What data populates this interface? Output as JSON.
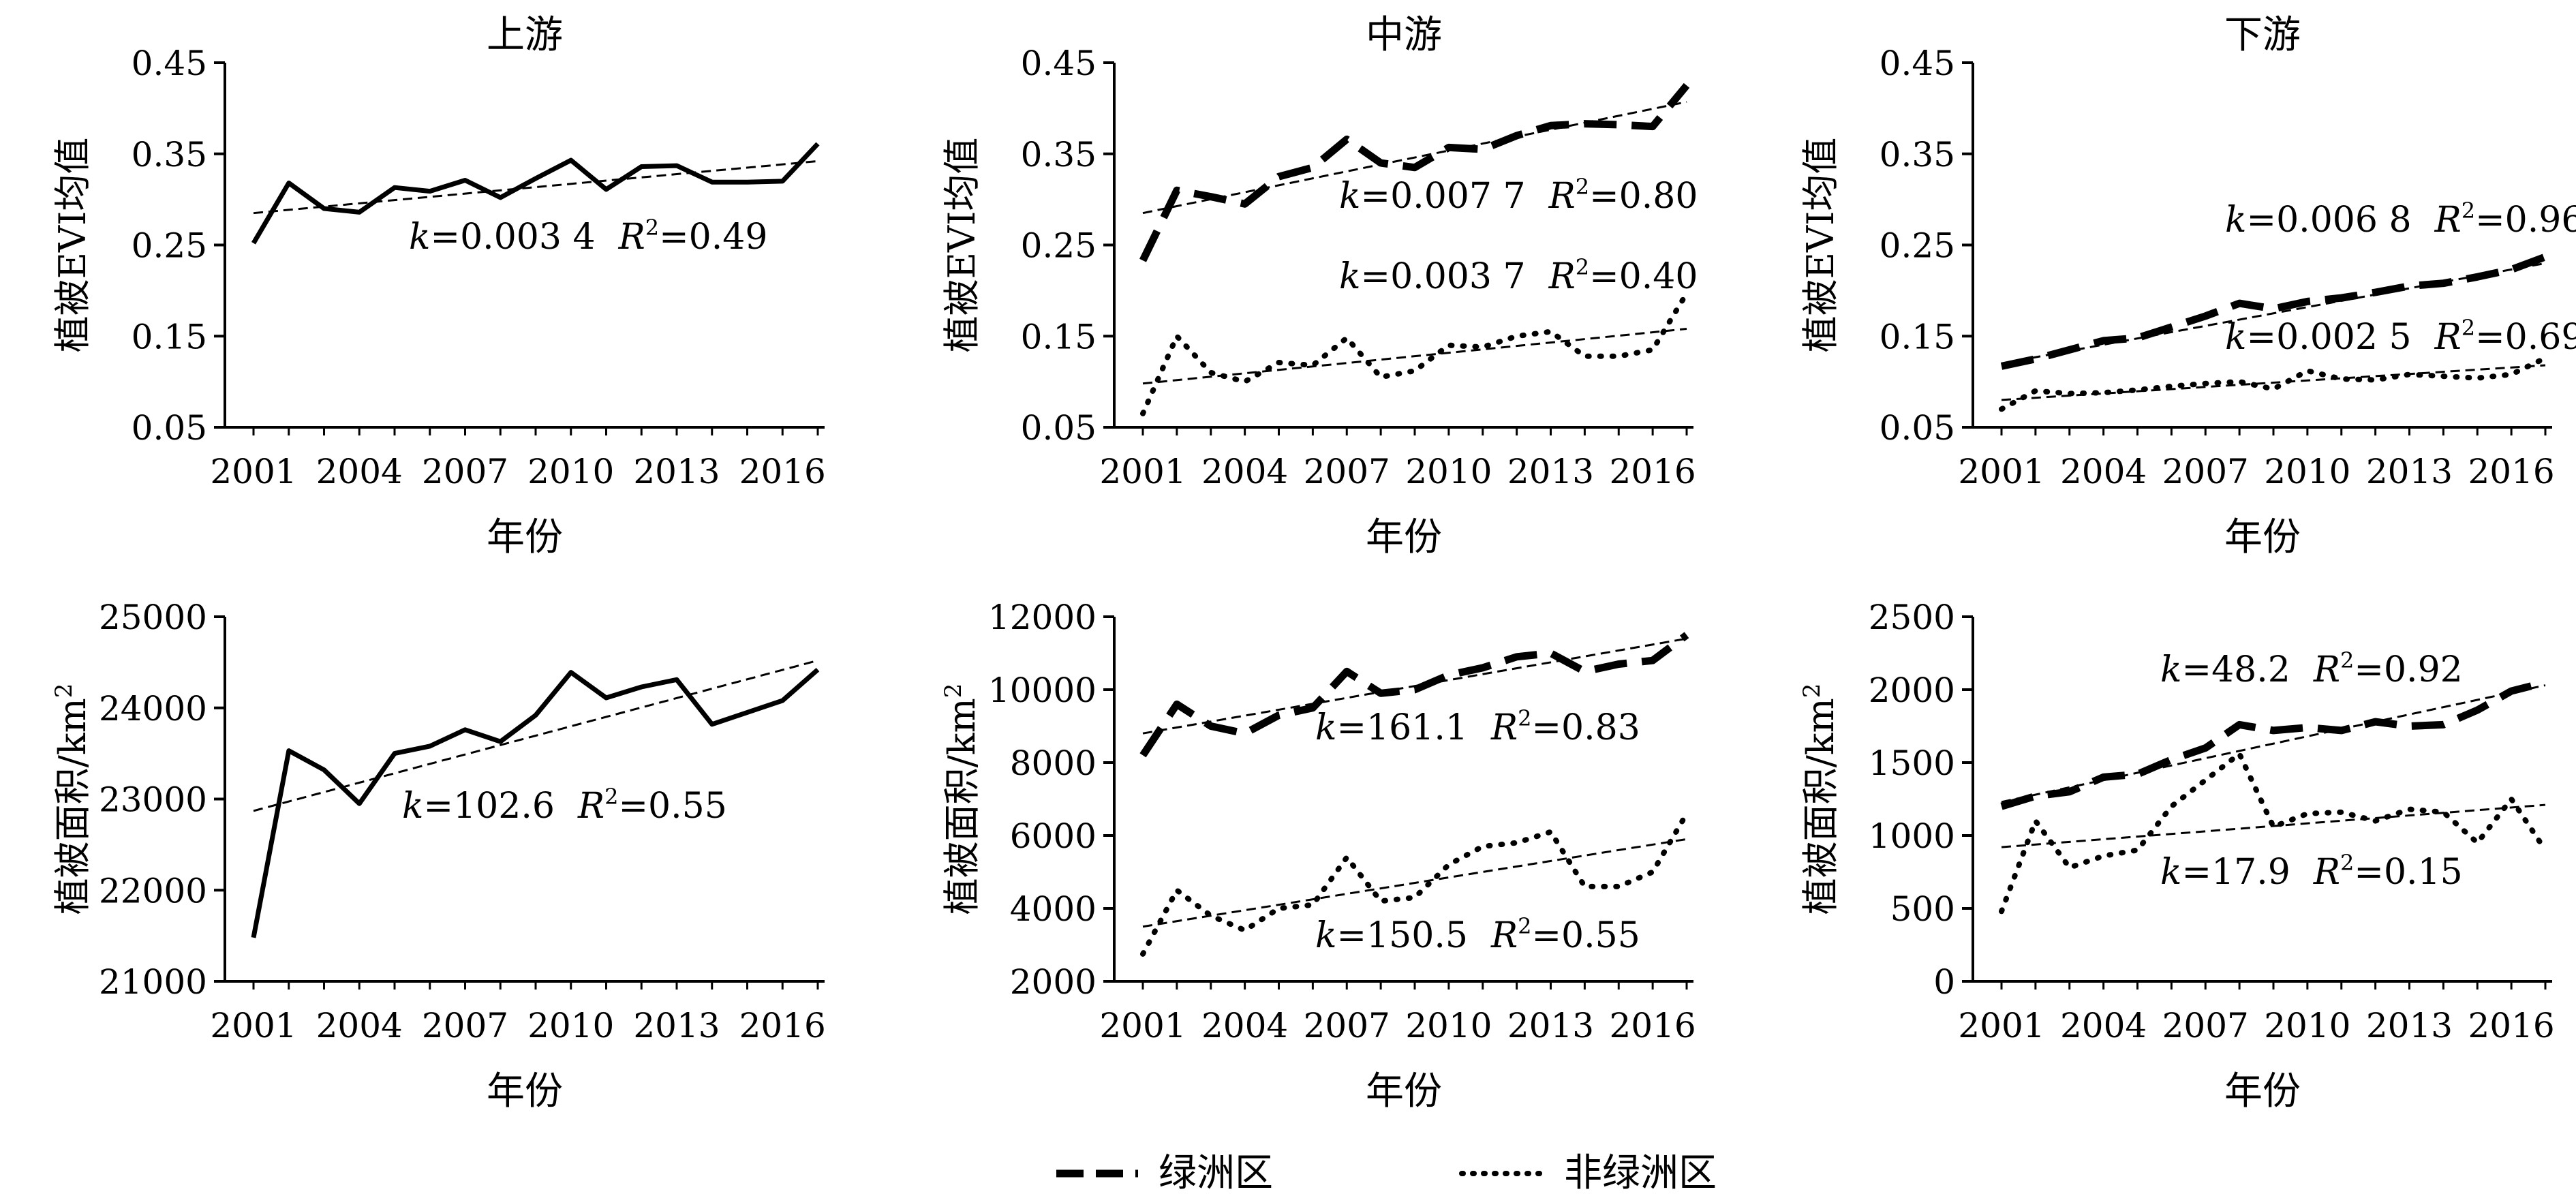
{
  "colors": {
    "ink": "#000000",
    "background": "#ffffff"
  },
  "legend": {
    "oasis_label": "绿洲区",
    "non_oasis_label": "非绿洲区"
  },
  "chart_data": [
    {
      "type": "line",
      "title": "上游",
      "xlabel": "年份",
      "ylabel": "植被EVI均值",
      "ylim": [
        0.05,
        0.45
      ],
      "yticks": [
        "0.45",
        "0.35",
        "0.25",
        "0.15",
        "0.05"
      ],
      "xticks": [
        "2001",
        "2004",
        "2007",
        "2010",
        "2013",
        "2016"
      ],
      "x": [
        2001,
        2002,
        2003,
        2004,
        2005,
        2006,
        2007,
        2008,
        2009,
        2010,
        2011,
        2012,
        2013,
        2014,
        2015,
        2016,
        2017
      ],
      "series": [
        {
          "name": "绿洲区",
          "style": "solid",
          "values": [
            0.252,
            0.318,
            0.29,
            0.286,
            0.313,
            0.309,
            0.321,
            0.302,
            0.323,
            0.343,
            0.311,
            0.336,
            0.337,
            0.319,
            0.319,
            0.32,
            0.361
          ],
          "trend": [
            0.285,
            0.342
          ],
          "annotation": {
            "k": "=0.003 4",
            "r2": "=0.49"
          }
        }
      ]
    },
    {
      "type": "line",
      "title": "中游",
      "xlabel": "年份",
      "ylabel": "植被EVI均值",
      "ylim": [
        0.05,
        0.45
      ],
      "yticks": [
        "0.45",
        "0.35",
        "0.25",
        "0.15",
        "0.05"
      ],
      "xticks": [
        "2001",
        "2004",
        "2007",
        "2010",
        "2013",
        "2016"
      ],
      "x": [
        2001,
        2002,
        2003,
        2004,
        2005,
        2006,
        2007,
        2008,
        2009,
        2010,
        2011,
        2012,
        2013,
        2014,
        2015,
        2016,
        2017
      ],
      "series": [
        {
          "name": "绿洲区",
          "style": "dashed",
          "values": [
            0.233,
            0.31,
            0.303,
            0.295,
            0.325,
            0.335,
            0.366,
            0.34,
            0.335,
            0.357,
            0.355,
            0.37,
            0.381,
            0.383,
            0.382,
            0.38,
            0.425
          ],
          "trend": [
            0.285,
            0.407
          ],
          "annotation": {
            "k": "=0.007 7",
            "r2": "=0.80"
          }
        },
        {
          "name": "非绿洲区",
          "style": "dotted",
          "values": [
            0.065,
            0.15,
            0.11,
            0.1,
            0.121,
            0.118,
            0.148,
            0.105,
            0.112,
            0.14,
            0.138,
            0.15,
            0.155,
            0.128,
            0.128,
            0.135,
            0.197
          ],
          "trend": [
            0.098,
            0.158
          ],
          "annotation": {
            "k": "=0.003 7",
            "r2": "=0.40"
          }
        }
      ]
    },
    {
      "type": "line",
      "title": "下游",
      "xlabel": "年份",
      "ylabel": "植被EVI均值",
      "ylim": [
        0.05,
        0.45
      ],
      "yticks": [
        "0.45",
        "0.35",
        "0.25",
        "0.15",
        "0.05"
      ],
      "xticks": [
        "2001",
        "2004",
        "2007",
        "2010",
        "2013",
        "2016"
      ],
      "x": [
        2001,
        2002,
        2003,
        2004,
        2005,
        2006,
        2007,
        2008,
        2009,
        2010,
        2011,
        2012,
        2013,
        2014,
        2015,
        2016,
        2017
      ],
      "series": [
        {
          "name": "绿洲区",
          "style": "dashed",
          "values": [
            0.117,
            0.125,
            0.135,
            0.145,
            0.148,
            0.16,
            0.172,
            0.186,
            0.18,
            0.188,
            0.192,
            0.198,
            0.205,
            0.208,
            0.215,
            0.223,
            0.237
          ],
          "trend": [
            0.12,
            0.23
          ],
          "annotation": {
            "k": "=0.006 8",
            "r2": "=0.96"
          }
        },
        {
          "name": "非绿洲区",
          "style": "dotted",
          "values": [
            0.07,
            0.09,
            0.087,
            0.088,
            0.091,
            0.095,
            0.098,
            0.1,
            0.092,
            0.112,
            0.103,
            0.102,
            0.108,
            0.106,
            0.104,
            0.108,
            0.126
          ],
          "trend": [
            0.08,
            0.118
          ],
          "annotation": {
            "k": "=0.002 5",
            "r2": "=0.69"
          }
        }
      ]
    },
    {
      "type": "line",
      "title": "",
      "xlabel": "年份",
      "ylabel": "植被面积/km",
      "ylabel_sup": "2",
      "ylim": [
        21000,
        25000
      ],
      "yticks": [
        "25000",
        "24000",
        "23000",
        "22000",
        "21000"
      ],
      "xticks": [
        "2001",
        "2004",
        "2007",
        "2010",
        "2013",
        "2016"
      ],
      "x": [
        2001,
        2002,
        2003,
        2004,
        2005,
        2006,
        2007,
        2008,
        2009,
        2010,
        2011,
        2012,
        2013,
        2014,
        2015,
        2016,
        2017
      ],
      "series": [
        {
          "name": "绿洲区",
          "style": "solid",
          "values": [
            21480,
            23530,
            23320,
            22950,
            23500,
            23580,
            23760,
            23630,
            23920,
            24390,
            24110,
            24230,
            24310,
            23820,
            23950,
            24080,
            24420
          ],
          "trend": [
            22870,
            24520
          ],
          "annotation": {
            "k": "=102.6",
            "r2": "=0.55"
          }
        }
      ]
    },
    {
      "type": "line",
      "title": "",
      "xlabel": "年份",
      "ylabel": "植被面积/km",
      "ylabel_sup": "2",
      "ylim": [
        2000,
        12000
      ],
      "yticks": [
        "12000",
        "10000",
        "8000",
        "6000",
        "4000",
        "2000"
      ],
      "xticks": [
        "2001",
        "2004",
        "2007",
        "2010",
        "2013",
        "2016"
      ],
      "x": [
        2001,
        2002,
        2003,
        2004,
        2005,
        2006,
        2007,
        2008,
        2009,
        2010,
        2011,
        2012,
        2013,
        2014,
        2015,
        2016,
        2017
      ],
      "series": [
        {
          "name": "绿洲区",
          "style": "dashed",
          "values": [
            8200,
            9600,
            9000,
            8800,
            9300,
            9500,
            10500,
            9900,
            10000,
            10400,
            10600,
            10900,
            11000,
            10500,
            10700,
            10800,
            11500
          ],
          "trend": [
            8800,
            11400
          ],
          "annotation": {
            "k": "=161.1",
            "r2": "=0.83"
          }
        },
        {
          "name": "非绿洲区",
          "style": "dotted",
          "values": [
            2750,
            4500,
            3800,
            3400,
            4000,
            4100,
            5400,
            4200,
            4300,
            5200,
            5700,
            5800,
            6100,
            4600,
            4600,
            5000,
            6600
          ],
          "trend": [
            3500,
            5900
          ],
          "annotation": {
            "k": "=150.5",
            "r2": "=0.55"
          }
        }
      ]
    },
    {
      "type": "line",
      "title": "",
      "xlabel": "年份",
      "ylabel": "植被面积/km",
      "ylabel_sup": "2",
      "ylim": [
        0,
        2500
      ],
      "yticks": [
        "2500",
        "2000",
        "1500",
        "1000",
        "500",
        "0"
      ],
      "xticks": [
        "2001",
        "2004",
        "2007",
        "2010",
        "2013",
        "2016"
      ],
      "x": [
        2001,
        2002,
        2003,
        2004,
        2005,
        2006,
        2007,
        2008,
        2009,
        2010,
        2011,
        2012,
        2013,
        2014,
        2015,
        2016,
        2017
      ],
      "series": [
        {
          "name": "绿洲区",
          "style": "dashed",
          "values": [
            1200,
            1270,
            1300,
            1400,
            1420,
            1520,
            1600,
            1760,
            1720,
            1740,
            1720,
            1780,
            1750,
            1760,
            1860,
            1990,
            2050
          ],
          "trend": [
            1230,
            2030
          ],
          "annotation": {
            "k": "=48.2",
            "r2": "=0.92"
          }
        },
        {
          "name": "非绿洲区",
          "style": "dotted",
          "values": [
            480,
            1100,
            780,
            860,
            900,
            1200,
            1380,
            1560,
            1060,
            1150,
            1160,
            1100,
            1180,
            1160,
            950,
            1250,
            900
          ],
          "trend": [
            920,
            1210
          ],
          "annotation": {
            "k": "=17.9",
            "r2": "=0.15"
          }
        }
      ]
    }
  ]
}
